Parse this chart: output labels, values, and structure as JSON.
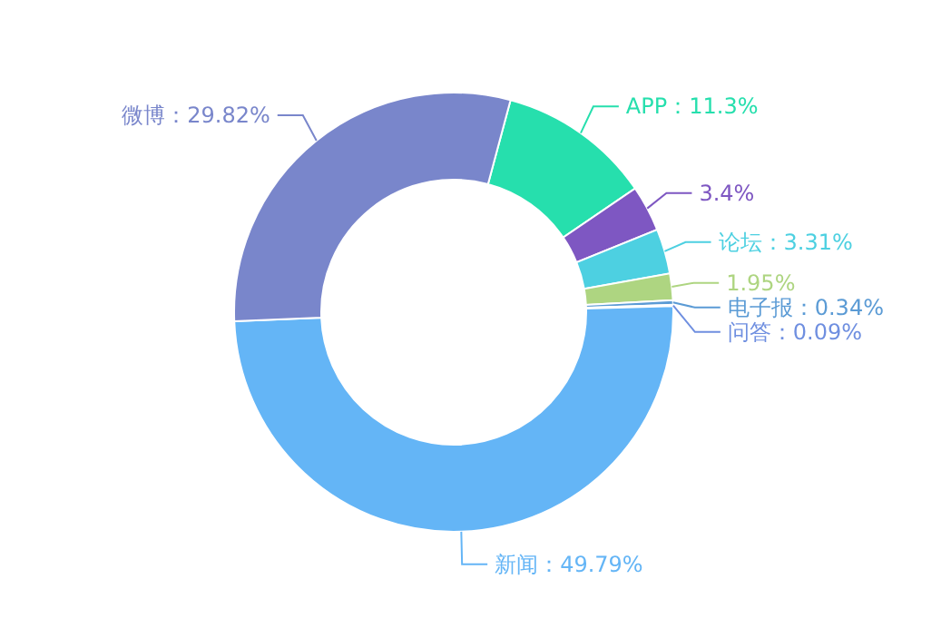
{
  "chart_data": {
    "type": "donut",
    "categories": [
      "APP",
      null,
      "论坛",
      null,
      "电子报",
      "问答",
      "新闻",
      "微博"
    ],
    "values": [
      11.3,
      3.4,
      3.31,
      1.95,
      0.34,
      0.09,
      49.79,
      29.82
    ],
    "value_labels": [
      "：11.3%",
      "3.4%",
      "：3.31%",
      "1.95%",
      "：0.34%",
      "：0.09%",
      "：49.79%",
      "：29.82%"
    ],
    "colors": [
      "#26dfad",
      "#7e57c2",
      "#4dd0e1",
      "#aed581",
      "#5b9bd5",
      "#6f8fe0",
      "#64b5f6",
      "#7986cb"
    ]
  }
}
